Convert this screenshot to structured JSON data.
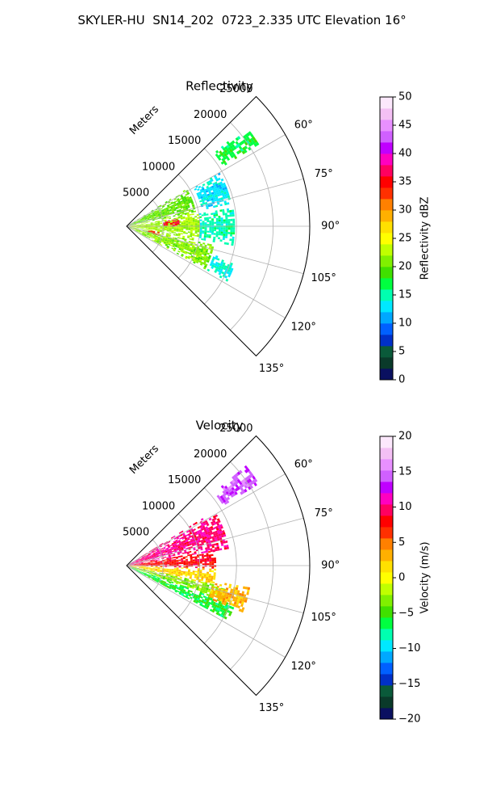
{
  "figure": {
    "suptitle": "SKYLER-HU  SN14_202  0723_2.335 UTC Elevation 16°"
  },
  "chart_data": [
    {
      "type": "heatmap",
      "title": "Reflectivity",
      "radial_label": "Meters",
      "radial_ticks": [
        5000,
        10000,
        15000,
        20000,
        25000
      ],
      "radial_tick_labels": [
        "5000",
        "10000",
        "15000",
        "20000",
        "25000"
      ],
      "rlim": [
        0,
        25000
      ],
      "azimuth_ticks": [
        60,
        75,
        90,
        105,
        120,
        135
      ],
      "azimuth_tick_labels": [
        "60°",
        "75°",
        "90°",
        "105°",
        "120°",
        "135°"
      ],
      "azimuth_range_deg": [
        45,
        135
      ],
      "grid": true,
      "colorbar": {
        "label": "Reflectivity dBZ",
        "range": [
          0,
          50
        ],
        "ticks": [
          0,
          5,
          10,
          15,
          20,
          25,
          30,
          35,
          40,
          45,
          50
        ],
        "tick_labels": [
          "0",
          "5",
          "10",
          "15",
          "20",
          "25",
          "30",
          "35",
          "40",
          "45",
          "50"
        ],
        "colors": [
          "#0a1060",
          "#0a3a2a",
          "#0a5a3a",
          "#0030c8",
          "#0060ff",
          "#00a8ff",
          "#00e8ff",
          "#00ffb0",
          "#00ff40",
          "#40e000",
          "#80f000",
          "#c0ff00",
          "#ffff00",
          "#ffe000",
          "#ffb000",
          "#ff8000",
          "#ff3000",
          "#ff0000",
          "#ff0060",
          "#ff00c0",
          "#c000ff",
          "#d060ff",
          "#e890ff",
          "#f4c0f4",
          "#fce8fc"
        ]
      },
      "regions": [
        {
          "az": [
            50,
            58
          ],
          "r": [
            15500,
            21000
          ],
          "value": 17
        },
        {
          "az": [
            58,
            78
          ],
          "r": [
            400,
            9500
          ],
          "value": 20
        },
        {
          "az": [
            60,
            78
          ],
          "r": [
            10500,
            14500
          ],
          "value": 13
        },
        {
          "az": [
            78,
            102
          ],
          "r": [
            400,
            10000
          ],
          "value": 22
        },
        {
          "az": [
            80,
            100
          ],
          "r": [
            10000,
            14500
          ],
          "value": 15
        },
        {
          "az": [
            102,
            118
          ],
          "r": [
            400,
            12000
          ],
          "value": 21
        },
        {
          "az": [
            108,
            118
          ],
          "r": [
            12500,
            15500
          ],
          "value": 14
        },
        {
          "az": [
            82,
            90
          ],
          "r": [
            5000,
            7000
          ],
          "value": 36
        },
        {
          "az": [
            100,
            106
          ],
          "r": [
            3000,
            4500
          ],
          "value": 34
        }
      ]
    },
    {
      "type": "heatmap",
      "title": "Velocity",
      "radial_label": "Meters",
      "radial_ticks": [
        5000,
        10000,
        15000,
        20000,
        25000
      ],
      "radial_tick_labels": [
        "5000",
        "10000",
        "15000",
        "20000",
        "25000"
      ],
      "rlim": [
        0,
        25000
      ],
      "azimuth_ticks": [
        60,
        75,
        90,
        105,
        120,
        135
      ],
      "azimuth_tick_labels": [
        "60°",
        "75°",
        "90°",
        "105°",
        "120°",
        "135°"
      ],
      "azimuth_range_deg": [
        45,
        135
      ],
      "grid": true,
      "colorbar": {
        "label": "Velocity (m/s)",
        "range": [
          -20,
          20
        ],
        "ticks": [
          -20,
          -15,
          -10,
          -5,
          0,
          5,
          10,
          15,
          20
        ],
        "tick_labels": [
          "−20",
          "−15",
          "−10",
          "−5",
          "0",
          "5",
          "10",
          "15",
          "20"
        ],
        "colors": [
          "#0a1060",
          "#0a3a2a",
          "#0a5a3a",
          "#0030c8",
          "#0060ff",
          "#00a8ff",
          "#00e8ff",
          "#00ffb0",
          "#00ff40",
          "#40e000",
          "#80f000",
          "#c0ff00",
          "#ffff00",
          "#ffe000",
          "#ffb000",
          "#ff8000",
          "#ff3000",
          "#ff0000",
          "#ff0060",
          "#ff00c0",
          "#c000ff",
          "#d060ff",
          "#e890ff",
          "#f4c0f4",
          "#fce8fc"
        ]
      },
      "regions": [
        {
          "az": [
            50,
            58
          ],
          "r": [
            15500,
            21000
          ],
          "value": 14
        },
        {
          "az": [
            58,
            80
          ],
          "r": [
            400,
            14000
          ],
          "value": 10
        },
        {
          "az": [
            80,
            92
          ],
          "r": [
            400,
            12000
          ],
          "value": 8
        },
        {
          "az": [
            92,
            102
          ],
          "r": [
            400,
            12000
          ],
          "value": 2
        },
        {
          "az": [
            102,
            110
          ],
          "r": [
            400,
            14000
          ],
          "value": -3
        },
        {
          "az": [
            110,
            118
          ],
          "r": [
            400,
            15500
          ],
          "value": -6
        },
        {
          "az": [
            100,
            112
          ],
          "r": [
            12000,
            17000
          ],
          "value": 3
        }
      ]
    }
  ]
}
